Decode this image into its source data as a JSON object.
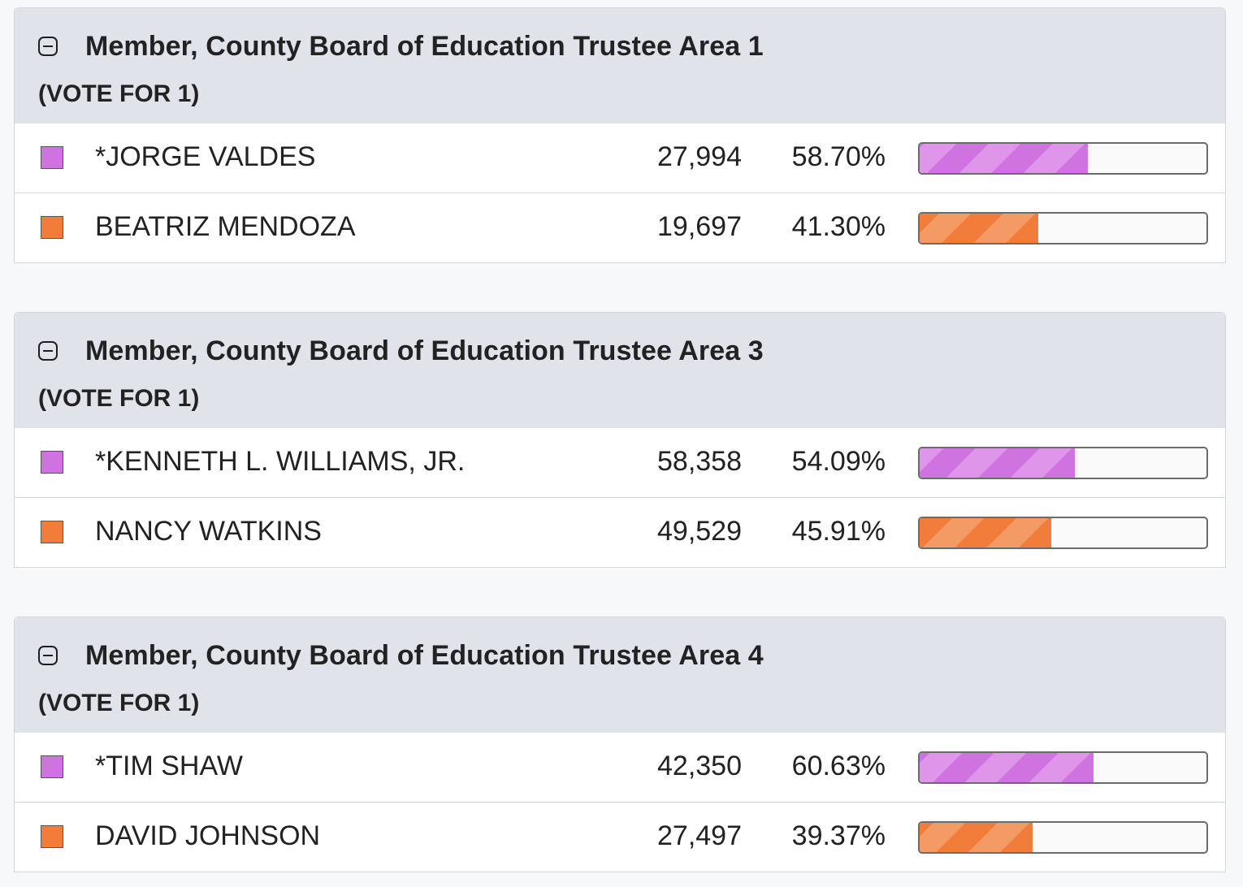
{
  "colors": {
    "purple": "#cf73e0",
    "orange": "#f27c3a",
    "header_bg": "#e0e4ea"
  },
  "races": [
    {
      "title": "Member, County Board of Education Trustee Area 1",
      "subtitle": "(VOTE FOR 1)",
      "collapse_icon": "minus-square-icon",
      "candidates": [
        {
          "name": "*JORGE VALDES",
          "votes": "27,994",
          "percent": "58.70%",
          "share": 58.7,
          "color": "purple"
        },
        {
          "name": "BEATRIZ MENDOZA",
          "votes": "19,697",
          "percent": "41.30%",
          "share": 41.3,
          "color": "orange"
        }
      ]
    },
    {
      "title": "Member, County Board of Education Trustee Area 3",
      "subtitle": "(VOTE FOR 1)",
      "collapse_icon": "minus-square-icon",
      "candidates": [
        {
          "name": "*KENNETH L. WILLIAMS, JR.",
          "votes": "58,358",
          "percent": "54.09%",
          "share": 54.09,
          "color": "purple"
        },
        {
          "name": "NANCY WATKINS",
          "votes": "49,529",
          "percent": "45.91%",
          "share": 45.91,
          "color": "orange"
        }
      ]
    },
    {
      "title": "Member, County Board of Education Trustee Area 4",
      "subtitle": "(VOTE FOR 1)",
      "collapse_icon": "minus-square-icon",
      "candidates": [
        {
          "name": "*TIM SHAW",
          "votes": "42,350",
          "percent": "60.63%",
          "share": 60.63,
          "color": "purple"
        },
        {
          "name": "DAVID JOHNSON",
          "votes": "27,497",
          "percent": "39.37%",
          "share": 39.37,
          "color": "orange"
        }
      ]
    }
  ]
}
